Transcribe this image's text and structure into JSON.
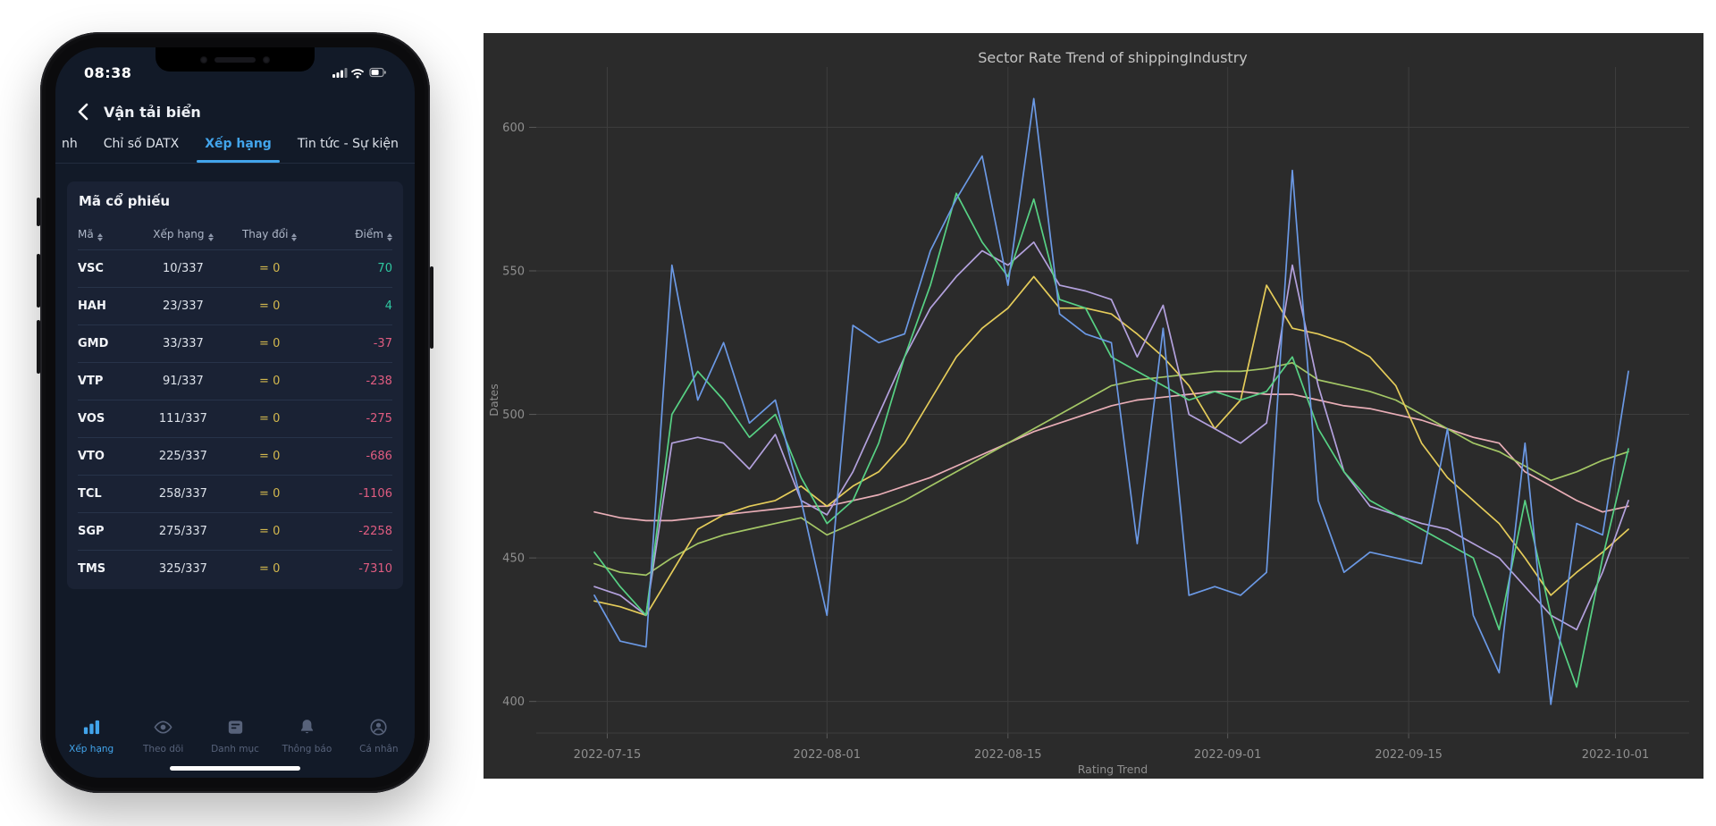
{
  "phone": {
    "status_bar": {
      "time": "08:38"
    },
    "header": {
      "title": "Vận tải biển"
    },
    "tabs": [
      {
        "label": "nh",
        "active": false
      },
      {
        "label": "Chỉ số DATX",
        "active": false
      },
      {
        "label": "Xếp hạng",
        "active": true
      },
      {
        "label": "Tin tức - Sự kiện",
        "active": false
      }
    ],
    "section_title": "Mã cổ phiếu",
    "table": {
      "columns": [
        "Mã",
        "Xếp hạng",
        "Thay đổi",
        "Điểm"
      ],
      "rows": [
        {
          "ticker": "VSC",
          "rank": "10/337",
          "change": "= 0",
          "score": "70"
        },
        {
          "ticker": "HAH",
          "rank": "23/337",
          "change": "= 0",
          "score": "4"
        },
        {
          "ticker": "GMD",
          "rank": "33/337",
          "change": "= 0",
          "score": "-37"
        },
        {
          "ticker": "VTP",
          "rank": "91/337",
          "change": "= 0",
          "score": "-238"
        },
        {
          "ticker": "VOS",
          "rank": "111/337",
          "change": "= 0",
          "score": "-275"
        },
        {
          "ticker": "VTO",
          "rank": "225/337",
          "change": "= 0",
          "score": "-686"
        },
        {
          "ticker": "TCL",
          "rank": "258/337",
          "change": "= 0",
          "score": "-1106"
        },
        {
          "ticker": "SGP",
          "rank": "275/337",
          "change": "= 0",
          "score": "-2258"
        },
        {
          "ticker": "TMS",
          "rank": "325/337",
          "change": "= 0",
          "score": "-7310"
        }
      ]
    },
    "nav": [
      {
        "label": "Xếp hạng",
        "icon": "bar-chart",
        "active": true
      },
      {
        "label": "Theo dõi",
        "icon": "eye",
        "active": false
      },
      {
        "label": "Danh mục",
        "icon": "card",
        "active": false
      },
      {
        "label": "Thông báo",
        "icon": "bell",
        "active": false
      },
      {
        "label": "Cá nhân",
        "icon": "person",
        "active": false
      }
    ],
    "colors": {
      "accent": "#42a4eb",
      "positive": "#2fc7a0",
      "negative": "#e05c80",
      "change_zero": "#d4b94e",
      "nav_inactive": "#57627a"
    }
  },
  "chart_data": {
    "type": "line",
    "title": "Sector Rate Trend of shippingIndustry",
    "xlabel": "Rating Trend",
    "ylabel": "Dates",
    "background": "#2b2b2b",
    "grid": true,
    "grid_color": "#3e3e3e",
    "text_color": "#8f8f8f",
    "title_color": "#c4c4c4",
    "legend_position": "none",
    "ylim": [
      389,
      621
    ],
    "yticks": [
      400,
      450,
      500,
      550,
      600
    ],
    "xticks": [
      "2022-07-15",
      "2022-08-01",
      "2022-08-15",
      "2022-09-01",
      "2022-09-15",
      "2022-10-01"
    ],
    "x": [
      "2022-07-14",
      "2022-07-16",
      "2022-07-18",
      "2022-07-20",
      "2022-07-22",
      "2022-07-24",
      "2022-07-26",
      "2022-07-28",
      "2022-07-30",
      "2022-08-01",
      "2022-08-03",
      "2022-08-05",
      "2022-08-07",
      "2022-08-09",
      "2022-08-11",
      "2022-08-13",
      "2022-08-15",
      "2022-08-17",
      "2022-08-19",
      "2022-08-21",
      "2022-08-23",
      "2022-08-25",
      "2022-08-27",
      "2022-08-29",
      "2022-08-31",
      "2022-09-02",
      "2022-09-04",
      "2022-09-06",
      "2022-09-08",
      "2022-09-10",
      "2022-09-12",
      "2022-09-14",
      "2022-09-16",
      "2022-09-18",
      "2022-09-20",
      "2022-09-22",
      "2022-09-24",
      "2022-09-26",
      "2022-09-28",
      "2022-09-30",
      "2022-10-02"
    ],
    "series": [
      {
        "name": "pink",
        "color": "#e9aeb7",
        "values": [
          466,
          464,
          463,
          463,
          464,
          465,
          466,
          467,
          468,
          468,
          470,
          472,
          475,
          478,
          482,
          486,
          490,
          494,
          497,
          500,
          503,
          505,
          506,
          507,
          508,
          508,
          507,
          507,
          505,
          503,
          502,
          500,
          498,
          495,
          492,
          490,
          480,
          475,
          470,
          466,
          468
        ]
      },
      {
        "name": "olive",
        "color": "#a4c766",
        "values": [
          448,
          445,
          444,
          450,
          455,
          458,
          460,
          462,
          464,
          458,
          462,
          466,
          470,
          475,
          480,
          485,
          490,
          495,
          500,
          505,
          510,
          512,
          513,
          514,
          515,
          515,
          516,
          518,
          512,
          510,
          508,
          505,
          500,
          495,
          490,
          487,
          482,
          477,
          480,
          484,
          487
        ]
      },
      {
        "name": "yellow",
        "color": "#e5cc5a",
        "values": [
          435,
          433,
          430,
          445,
          460,
          465,
          468,
          470,
          475,
          468,
          475,
          480,
          490,
          505,
          520,
          530,
          537,
          548,
          537,
          537,
          535,
          528,
          520,
          510,
          495,
          505,
          545,
          530,
          528,
          525,
          520,
          510,
          490,
          478,
          470,
          462,
          450,
          437,
          445,
          452,
          460
        ]
      },
      {
        "name": "purple",
        "color": "#b3a1dd",
        "values": [
          440,
          437,
          430,
          490,
          492,
          490,
          481,
          493,
          470,
          465,
          480,
          500,
          520,
          537,
          548,
          557,
          552,
          560,
          545,
          543,
          540,
          520,
          538,
          500,
          495,
          490,
          497,
          552,
          510,
          480,
          468,
          465,
          462,
          460,
          455,
          450,
          440,
          430,
          425,
          445,
          470
        ]
      },
      {
        "name": "green",
        "color": "#57d184",
        "values": [
          452,
          440,
          430,
          500,
          515,
          505,
          492,
          500,
          478,
          462,
          470,
          490,
          520,
          545,
          577,
          560,
          548,
          575,
          540,
          537,
          520,
          515,
          510,
          505,
          508,
          505,
          508,
          520,
          495,
          480,
          470,
          465,
          460,
          455,
          450,
          425,
          470,
          430,
          405,
          450,
          488
        ]
      },
      {
        "name": "blue",
        "color": "#6b99e5",
        "values": [
          437,
          421,
          419,
          552,
          505,
          525,
          497,
          505,
          470,
          430,
          531,
          525,
          528,
          557,
          575,
          590,
          545,
          610,
          535,
          528,
          525,
          455,
          530,
          437,
          440,
          437,
          445,
          585,
          470,
          445,
          452,
          450,
          448,
          495,
          430,
          410,
          490,
          399,
          462,
          458,
          515
        ]
      }
    ]
  }
}
